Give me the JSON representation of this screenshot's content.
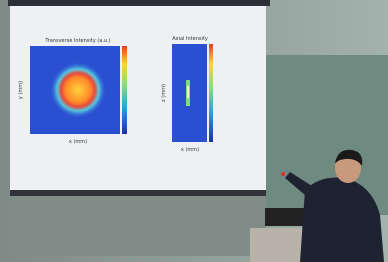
{
  "slide": {
    "panels": [
      {
        "title": "Transverse Intensity (a.u.)",
        "x_label": "x (mm)",
        "y_label": "y (mm)"
      },
      {
        "title": "Axial Intensity",
        "x_label": "x (mm)",
        "y_label": "z (mm)"
      }
    ]
  }
}
